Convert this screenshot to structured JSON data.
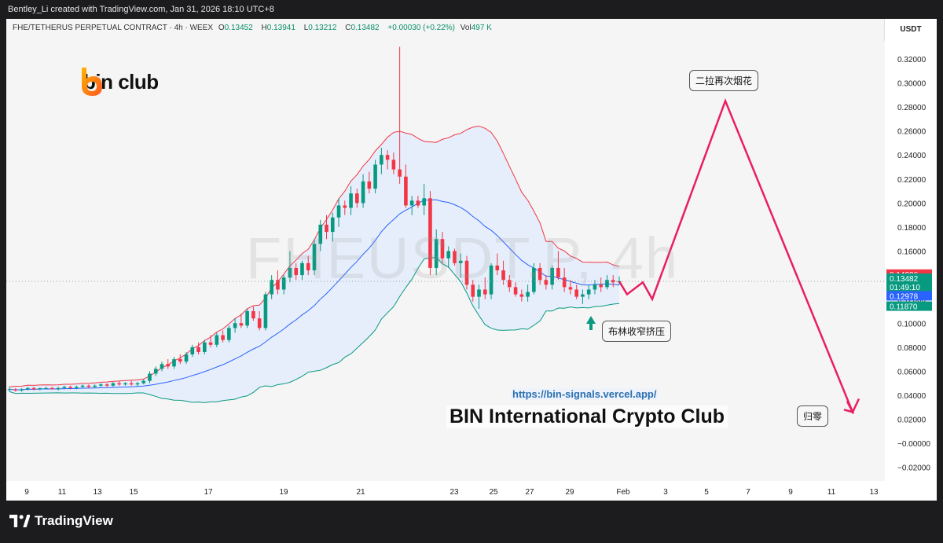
{
  "header": {
    "attribution": "Bentley_Li created with TradingView.com, Jan 31, 2026 18:10 UTC+8"
  },
  "legend": {
    "symbol": "FHE/TETHERUS PERPETUAL CONTRACT · 4h · WEEX",
    "o_label": "O",
    "o": "0.13452",
    "h_label": "H",
    "h": "0.13941",
    "l_label": "L",
    "l": "0.13212",
    "c_label": "C",
    "c": "0.13482",
    "change": "+0.00030 (+0.22%)",
    "vol_label": "Vol",
    "vol": "497 K"
  },
  "branding": {
    "logo_text": "bin club",
    "url": "https://bin-signals.vercel.app/",
    "club_name": "BIN International Crypto Club",
    "watermark": "FHEUSDT.P, 4h"
  },
  "annotations": {
    "top_target": "二拉再次烟花",
    "squeeze": "布林收窄挤压",
    "zero": "归零"
  },
  "footer": {
    "brand": "TradingView"
  },
  "colors": {
    "up": "#089981",
    "down": "#f23645",
    "bb_upper": "#f23645",
    "bb_lower": "#089981",
    "bb_basis": "#2962ff",
    "bb_fill": "#e3ecfb",
    "projection": "#e91e63",
    "price_tag": "#f23645",
    "close_tag": "#089981",
    "basis_tag": "#2962ff"
  },
  "chart_data": {
    "type": "candlestick",
    "unit": "USDT",
    "interval": "4h",
    "ylim": [
      -0.03,
      0.335
    ],
    "y_ticks": [
      "0.32000",
      "0.30000",
      "0.28000",
      "0.26000",
      "0.24000",
      "0.22000",
      "0.20000",
      "0.18000",
      "0.16000",
      "0.14000",
      "0.12000",
      "0.10000",
      "0.08000",
      "0.06000",
      "0.04000",
      "0.02000",
      "−0.00000",
      "−0.02000"
    ],
    "x_ticks": [
      "9",
      "11",
      "13",
      "15",
      "17",
      "19",
      "21",
      "23",
      "25",
      "27",
      "29",
      "Feb",
      "3",
      "5",
      "7",
      "9",
      "11",
      "13"
    ],
    "price_labels": {
      "upper_band": "0.14086",
      "close": "0.13482",
      "countdown": "01:49:10",
      "basis": "0.12978",
      "lower_band": "0.11870"
    },
    "projection_path": [
      {
        "date": "Jan 31",
        "value": 0.1348
      },
      {
        "date": "Feb 1",
        "value": 0.124
      },
      {
        "date": "Feb 1",
        "value": 0.134
      },
      {
        "date": "Feb 2",
        "value": 0.12
      },
      {
        "date": "Feb 6",
        "value": 0.285
      },
      {
        "date": "Feb 12",
        "value": 0.026
      },
      {
        "date": "Feb 12",
        "value": 0.037
      }
    ],
    "series": [
      {
        "name": "FHEUSDT.P",
        "ohlc": [
          [
            0.045,
            0.047,
            0.043,
            0.045
          ],
          [
            0.045,
            0.046,
            0.043,
            0.044
          ],
          [
            0.044,
            0.046,
            0.043,
            0.045
          ],
          [
            0.045,
            0.047,
            0.044,
            0.046
          ],
          [
            0.046,
            0.047,
            0.044,
            0.045
          ],
          [
            0.045,
            0.046,
            0.044,
            0.046
          ],
          [
            0.046,
            0.047,
            0.045,
            0.046
          ],
          [
            0.046,
            0.047,
            0.045,
            0.045
          ],
          [
            0.045,
            0.047,
            0.044,
            0.046
          ],
          [
            0.046,
            0.048,
            0.045,
            0.047
          ],
          [
            0.047,
            0.048,
            0.045,
            0.046
          ],
          [
            0.046,
            0.048,
            0.045,
            0.047
          ],
          [
            0.047,
            0.049,
            0.046,
            0.048
          ],
          [
            0.048,
            0.049,
            0.046,
            0.047
          ],
          [
            0.047,
            0.049,
            0.046,
            0.048
          ],
          [
            0.048,
            0.05,
            0.047,
            0.049
          ],
          [
            0.049,
            0.05,
            0.047,
            0.048
          ],
          [
            0.048,
            0.051,
            0.047,
            0.05
          ],
          [
            0.05,
            0.052,
            0.048,
            0.049
          ],
          [
            0.049,
            0.051,
            0.048,
            0.05
          ],
          [
            0.05,
            0.052,
            0.048,
            0.049
          ],
          [
            0.049,
            0.051,
            0.047,
            0.05
          ],
          [
            0.05,
            0.053,
            0.049,
            0.052
          ],
          [
            0.052,
            0.06,
            0.05,
            0.058
          ],
          [
            0.058,
            0.064,
            0.056,
            0.062
          ],
          [
            0.062,
            0.068,
            0.06,
            0.066
          ],
          [
            0.066,
            0.07,
            0.062,
            0.064
          ],
          [
            0.064,
            0.072,
            0.062,
            0.07
          ],
          [
            0.07,
            0.074,
            0.066,
            0.068
          ],
          [
            0.068,
            0.076,
            0.066,
            0.074
          ],
          [
            0.074,
            0.082,
            0.072,
            0.08
          ],
          [
            0.08,
            0.084,
            0.074,
            0.076
          ],
          [
            0.076,
            0.086,
            0.074,
            0.084
          ],
          [
            0.084,
            0.09,
            0.08,
            0.082
          ],
          [
            0.082,
            0.092,
            0.08,
            0.09
          ],
          [
            0.09,
            0.094,
            0.084,
            0.086
          ],
          [
            0.086,
            0.098,
            0.084,
            0.096
          ],
          [
            0.096,
            0.104,
            0.092,
            0.1
          ],
          [
            0.1,
            0.108,
            0.096,
            0.098
          ],
          [
            0.098,
            0.112,
            0.096,
            0.11
          ],
          [
            0.11,
            0.114,
            0.102,
            0.104
          ],
          [
            0.104,
            0.11,
            0.094,
            0.096
          ],
          [
            0.096,
            0.126,
            0.094,
            0.124
          ],
          [
            0.124,
            0.14,
            0.12,
            0.136
          ],
          [
            0.136,
            0.144,
            0.124,
            0.128
          ],
          [
            0.128,
            0.14,
            0.124,
            0.138
          ],
          [
            0.138,
            0.16,
            0.134,
            0.146
          ],
          [
            0.146,
            0.15,
            0.136,
            0.14
          ],
          [
            0.14,
            0.152,
            0.136,
            0.15
          ],
          [
            0.15,
            0.156,
            0.14,
            0.144
          ],
          [
            0.144,
            0.17,
            0.14,
            0.166
          ],
          [
            0.166,
            0.186,
            0.16,
            0.182
          ],
          [
            0.182,
            0.19,
            0.17,
            0.176
          ],
          [
            0.176,
            0.192,
            0.168,
            0.188
          ],
          [
            0.188,
            0.204,
            0.18,
            0.198
          ],
          [
            0.198,
            0.202,
            0.19,
            0.196
          ],
          [
            0.196,
            0.214,
            0.19,
            0.208
          ],
          [
            0.208,
            0.212,
            0.196,
            0.2
          ],
          [
            0.2,
            0.224,
            0.196,
            0.218
          ],
          [
            0.218,
            0.226,
            0.208,
            0.212
          ],
          [
            0.212,
            0.236,
            0.208,
            0.232
          ],
          [
            0.232,
            0.246,
            0.224,
            0.24
          ],
          [
            0.24,
            0.244,
            0.228,
            0.236
          ],
          [
            0.236,
            0.242,
            0.224,
            0.228
          ],
          [
            0.228,
            0.33,
            0.216,
            0.222
          ],
          [
            0.222,
            0.232,
            0.196,
            0.198
          ],
          [
            0.198,
            0.206,
            0.19,
            0.202
          ],
          [
            0.202,
            0.206,
            0.196,
            0.198
          ],
          [
            0.198,
            0.216,
            0.19,
            0.204
          ],
          [
            0.204,
            0.21,
            0.14,
            0.146
          ],
          [
            0.146,
            0.178,
            0.14,
            0.17
          ],
          [
            0.17,
            0.176,
            0.15,
            0.154
          ],
          [
            0.154,
            0.164,
            0.146,
            0.16
          ],
          [
            0.16,
            0.162,
            0.148,
            0.15
          ],
          [
            0.15,
            0.158,
            0.138,
            0.152
          ],
          [
            0.152,
            0.156,
            0.128,
            0.132
          ],
          [
            0.132,
            0.136,
            0.118,
            0.122
          ],
          [
            0.122,
            0.132,
            0.112,
            0.128
          ],
          [
            0.128,
            0.138,
            0.12,
            0.124
          ],
          [
            0.124,
            0.15,
            0.12,
            0.148
          ],
          [
            0.148,
            0.158,
            0.14,
            0.144
          ],
          [
            0.144,
            0.152,
            0.132,
            0.136
          ],
          [
            0.136,
            0.14,
            0.126,
            0.13
          ],
          [
            0.13,
            0.134,
            0.122,
            0.124
          ],
          [
            0.124,
            0.128,
            0.118,
            0.122
          ],
          [
            0.122,
            0.132,
            0.118,
            0.126
          ],
          [
            0.126,
            0.15,
            0.124,
            0.146
          ],
          [
            0.146,
            0.15,
            0.132,
            0.136
          ],
          [
            0.136,
            0.14,
            0.128,
            0.132
          ],
          [
            0.132,
            0.148,
            0.128,
            0.146
          ],
          [
            0.146,
            0.16,
            0.136,
            0.138
          ],
          [
            0.138,
            0.146,
            0.126,
            0.13
          ],
          [
            0.13,
            0.136,
            0.124,
            0.128
          ],
          [
            0.128,
            0.132,
            0.12,
            0.122
          ],
          [
            0.122,
            0.128,
            0.116,
            0.124
          ],
          [
            0.124,
            0.132,
            0.12,
            0.128
          ],
          [
            0.128,
            0.136,
            0.124,
            0.132
          ],
          [
            0.132,
            0.138,
            0.126,
            0.13
          ],
          [
            0.13,
            0.14,
            0.128,
            0.136
          ],
          [
            0.136,
            0.14,
            0.13,
            0.134
          ],
          [
            0.134,
            0.139,
            0.132,
            0.135
          ]
        ]
      }
    ]
  }
}
